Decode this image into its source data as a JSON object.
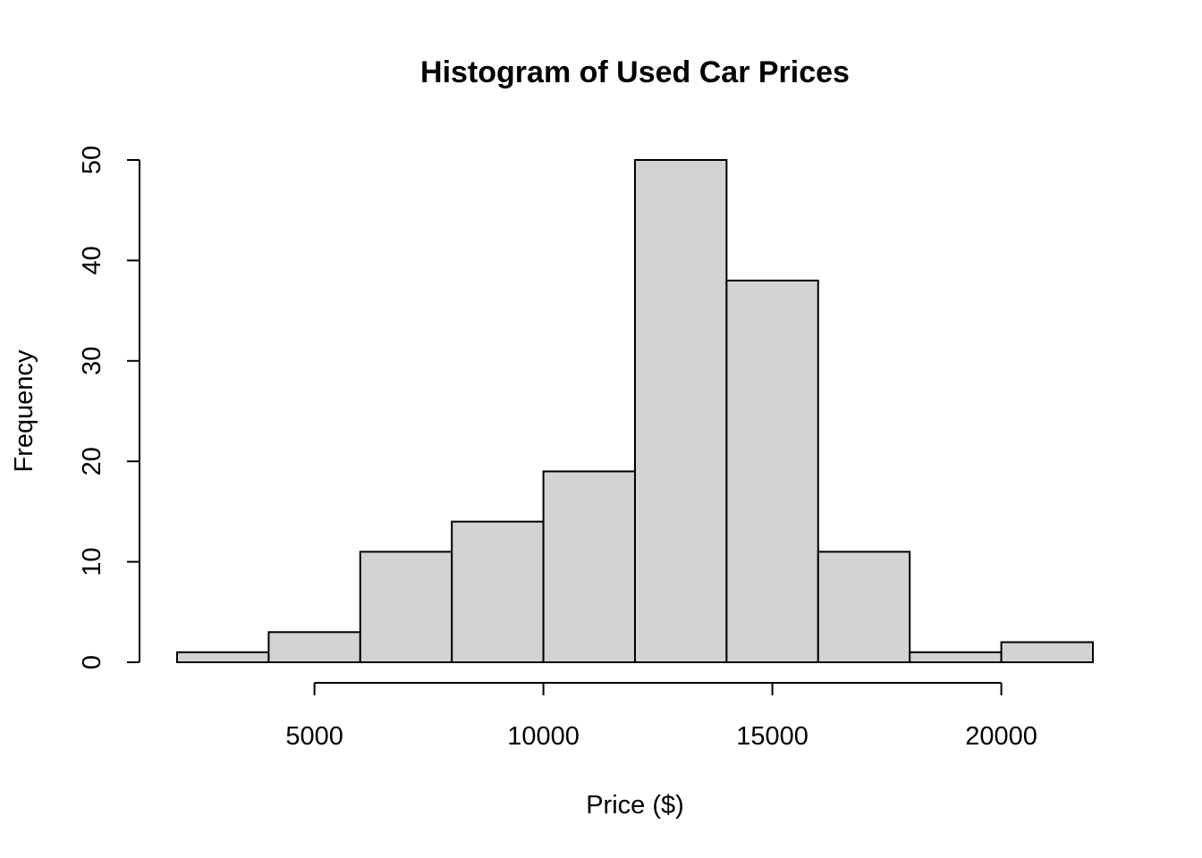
{
  "chart_data": {
    "type": "bar",
    "title": "Histogram of Used Car Prices",
    "xlabel": "Price ($)",
    "ylabel": "Frequency",
    "bins": [
      {
        "start": 2000,
        "end": 4000,
        "count": 1
      },
      {
        "start": 4000,
        "end": 6000,
        "count": 3
      },
      {
        "start": 6000,
        "end": 8000,
        "count": 11
      },
      {
        "start": 8000,
        "end": 10000,
        "count": 14
      },
      {
        "start": 10000,
        "end": 12000,
        "count": 19
      },
      {
        "start": 12000,
        "end": 14000,
        "count": 50
      },
      {
        "start": 14000,
        "end": 16000,
        "count": 38
      },
      {
        "start": 16000,
        "end": 18000,
        "count": 11
      },
      {
        "start": 18000,
        "end": 20000,
        "count": 1
      },
      {
        "start": 20000,
        "end": 22000,
        "count": 2
      }
    ],
    "x_ticks": [
      5000,
      10000,
      15000,
      20000
    ],
    "x_tick_labels": [
      "5000",
      "10000",
      "15000",
      "20000"
    ],
    "y_ticks": [
      0,
      10,
      20,
      30,
      40,
      50
    ],
    "y_tick_labels": [
      "0",
      "10",
      "20",
      "30",
      "40",
      "50"
    ],
    "xlim": [
      2000,
      22000
    ],
    "ylim": [
      0,
      50
    ],
    "grid": false,
    "bar_fill": "#d3d3d3",
    "bar_stroke": "#000000"
  }
}
